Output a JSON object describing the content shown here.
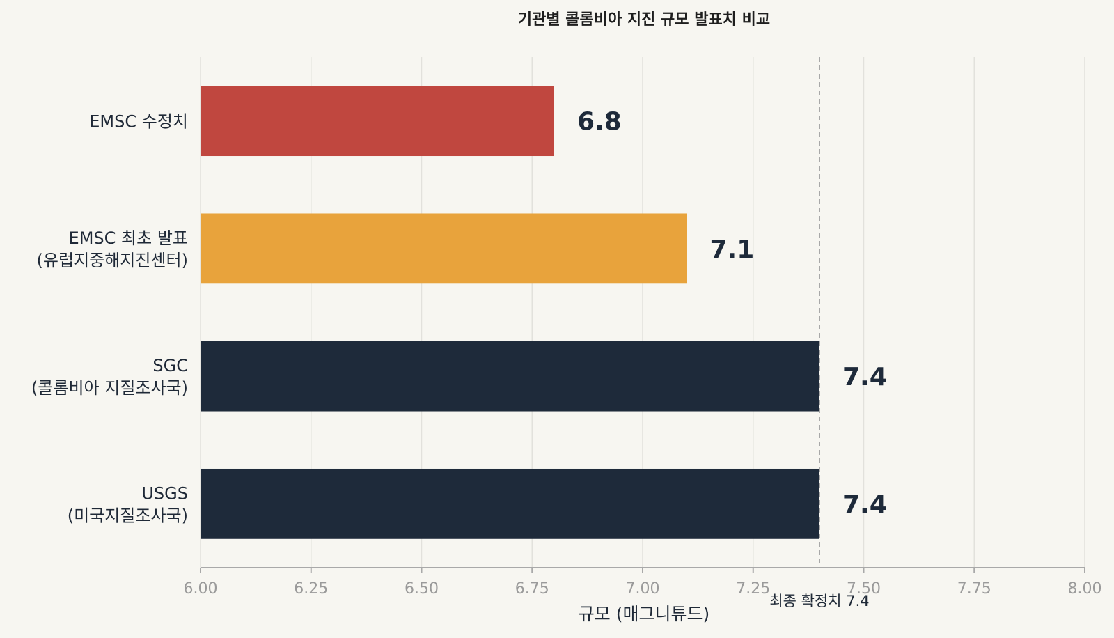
{
  "chart_data": {
    "type": "bar",
    "orientation": "horizontal",
    "title": "기관별 콜롬비아 지진 규모 발표치 비교",
    "xlabel": "규모 (매그니튜드)",
    "ylabel": "",
    "xlim": [
      6.0,
      8.0
    ],
    "xticks": [
      "6.00",
      "6.25",
      "6.50",
      "6.75",
      "7.00",
      "7.25",
      "7.50",
      "7.75",
      "8.00"
    ],
    "xtick_values": [
      6.0,
      6.25,
      6.5,
      6.75,
      7.0,
      7.25,
      7.5,
      7.75,
      8.0
    ],
    "grid": "vertical",
    "categories": [
      [
        "EMSC 수정치"
      ],
      [
        "EMSC 최초 발표",
        "(유럽지중해지진센터)"
      ],
      [
        "SGC",
        "(콜롬비아 지질조사국)"
      ],
      [
        "USGS",
        "(미국지질조사국)"
      ]
    ],
    "values": [
      6.8,
      7.1,
      7.4,
      7.4
    ],
    "value_labels": [
      "6.8",
      "7.1",
      "7.4",
      "7.4"
    ],
    "colors": [
      "#c0473f",
      "#e8a33c",
      "#1e2a3a",
      "#1e2a3a"
    ],
    "reference_line": {
      "value": 7.4,
      "label": "최종 확정치 7.4",
      "style": "dashed",
      "color": "#a8a8a8"
    }
  }
}
